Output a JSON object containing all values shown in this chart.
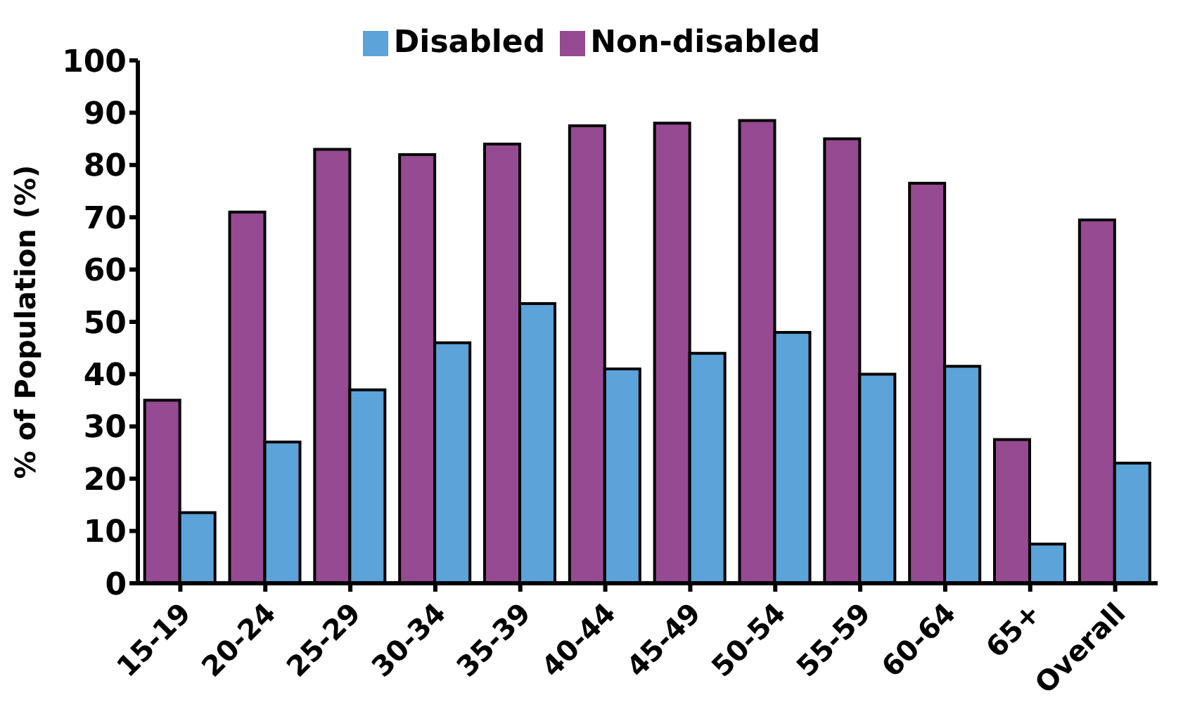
{
  "chart_data": {
    "type": "bar",
    "ylabel": "% of Population (%)",
    "categories": [
      "15-19",
      "20-24",
      "25-29",
      "30-34",
      "35-39",
      "40-44",
      "45-49",
      "50-54",
      "55-59",
      "60-64",
      "65+",
      "Overall"
    ],
    "series": [
      {
        "name": "Non-disabled",
        "color": "#954a91",
        "values": [
          35,
          71,
          83,
          82,
          84,
          87.5,
          88,
          88.5,
          85,
          76.5,
          27.5,
          69.5
        ]
      },
      {
        "name": "Disabled",
        "color": "#5ba3d9",
        "values": [
          13.5,
          27,
          37,
          46,
          53.5,
          41,
          44,
          48,
          40,
          41.5,
          7.5,
          23
        ]
      }
    ],
    "ylim": [
      0,
      100
    ],
    "yticks": [
      0,
      10,
      20,
      30,
      40,
      50,
      60,
      70,
      80,
      90,
      100
    ],
    "grid": false,
    "legend": "top"
  }
}
